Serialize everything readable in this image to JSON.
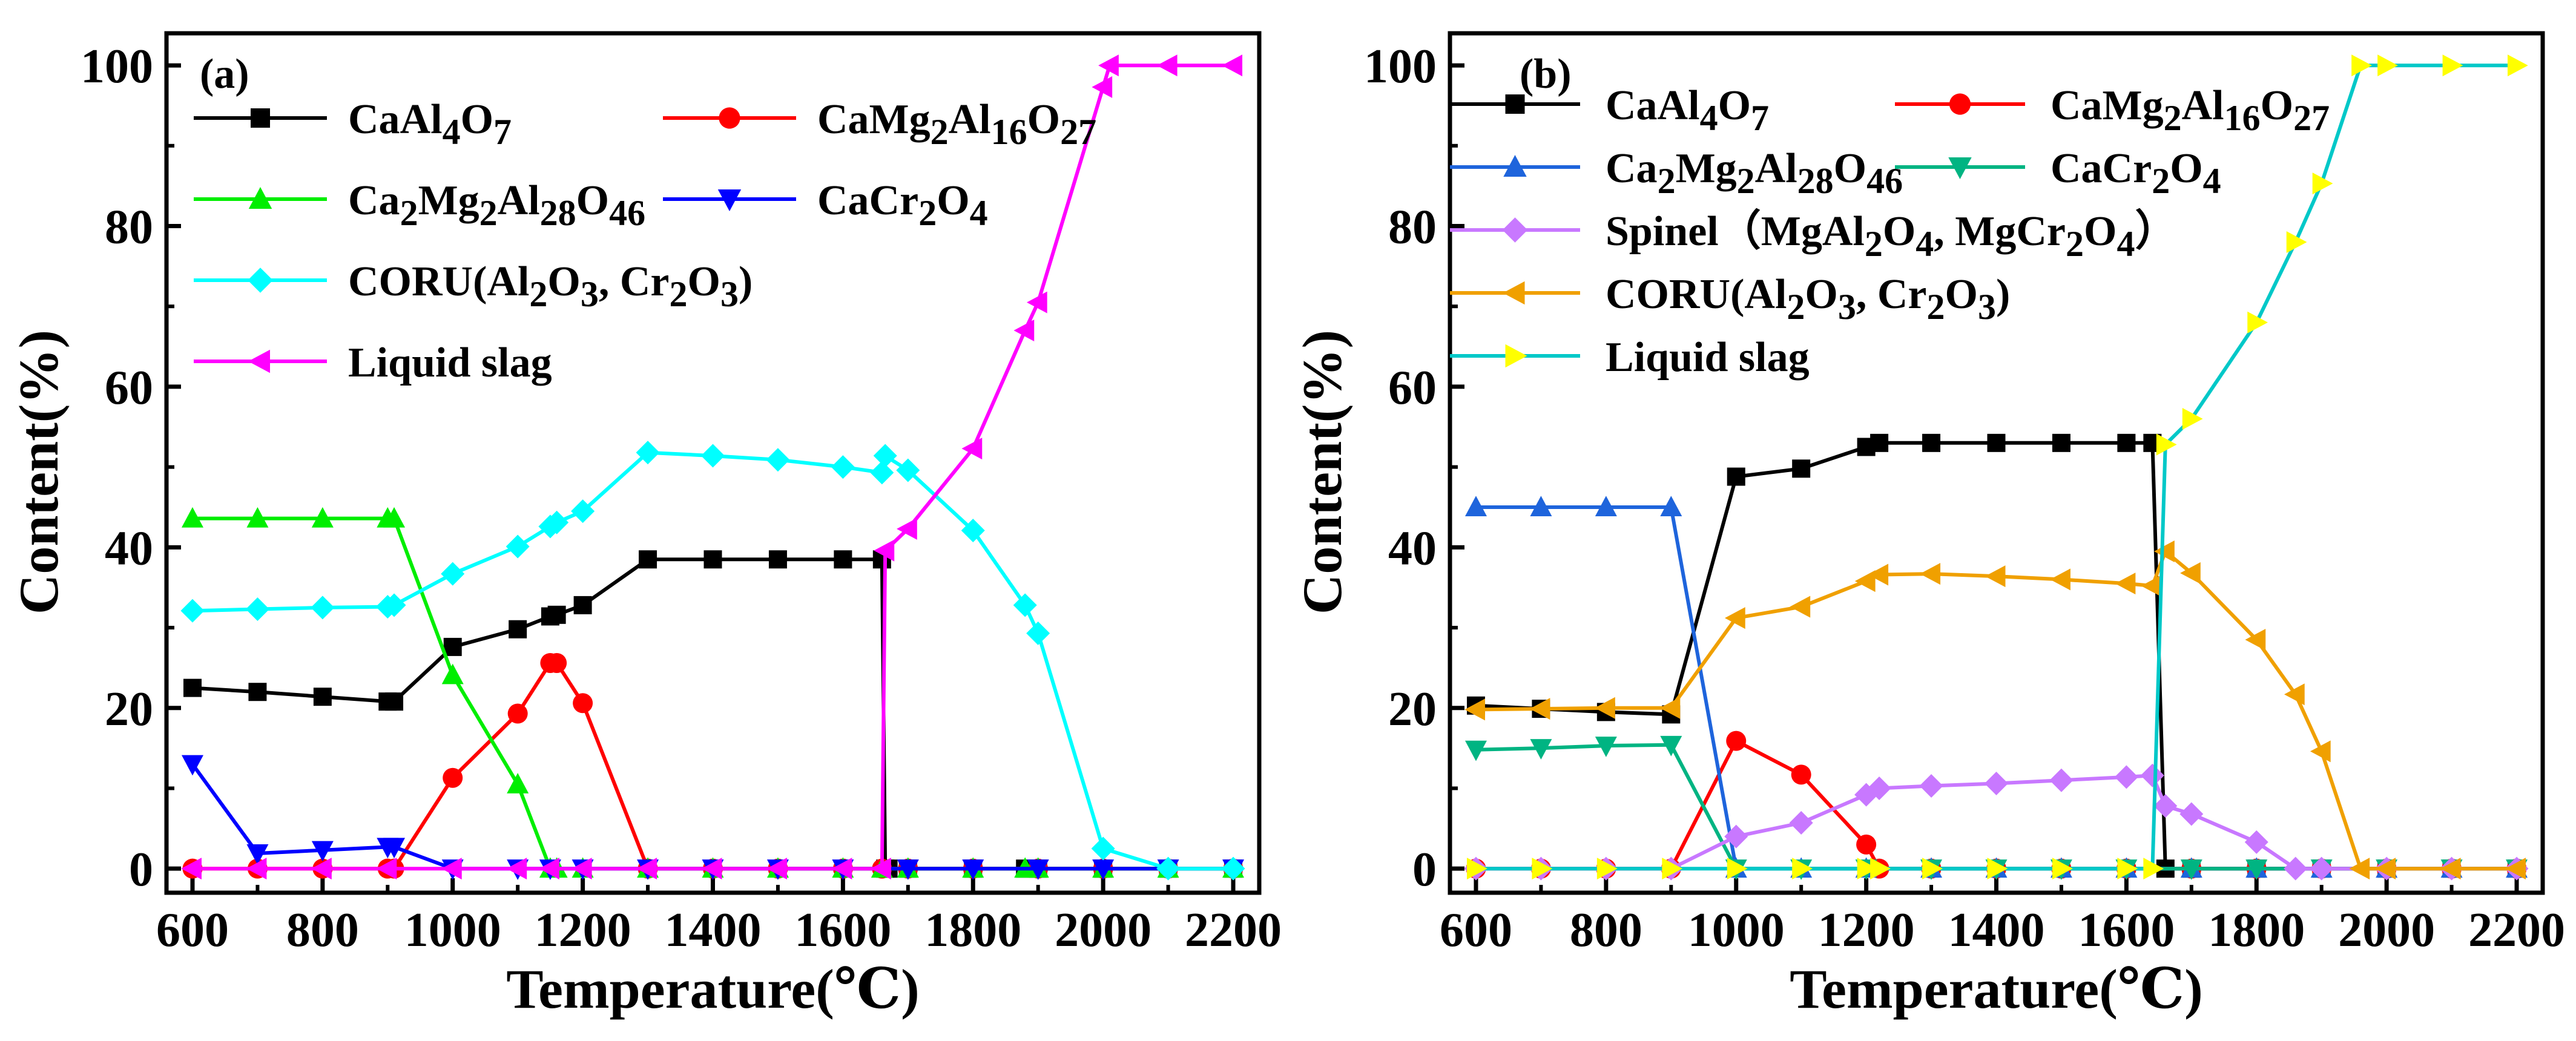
{
  "chart_data": [
    {
      "type": "line",
      "panel_label": "(a)",
      "xlabel": "Temperature(℃)",
      "ylabel": "Content(%)",
      "xlim": [
        560,
        2240
      ],
      "ylim": [
        -3,
        104
      ],
      "xticks": [
        600,
        800,
        1000,
        1200,
        1400,
        1600,
        1800,
        2000,
        2200
      ],
      "yticks": [
        0,
        20,
        40,
        60,
        80,
        100
      ],
      "legend": "top-left",
      "series": [
        {
          "name": "CaAl4O7",
          "label": {
            "main": "CaAl",
            "parts": [
              [
                "4",
                "sub"
              ],
              [
                "O",
                ""
              ],
              [
                "7",
                "sub"
              ]
            ]
          },
          "color": "#000000",
          "marker": "square",
          "x": [
            600,
            700,
            800,
            900,
            910,
            1000,
            1100,
            1150,
            1160,
            1200,
            1300,
            1400,
            1500,
            1600,
            1660,
            1665,
            1670,
            1700,
            1800,
            1880,
            1900,
            2000,
            2100,
            2200
          ],
          "y": [
            22.5,
            22,
            21.4,
            20.8,
            20.8,
            27.6,
            29.8,
            31.4,
            31.6,
            32.8,
            38.5,
            38.5,
            38.5,
            38.5,
            38.5,
            0,
            0,
            0,
            0,
            0,
            0,
            0,
            0,
            0
          ]
        },
        {
          "name": "CaMg2Al16O27",
          "label": {
            "main": "CaMg",
            "parts": [
              [
                "2",
                "sub"
              ],
              [
                "Al",
                ""
              ],
              [
                "16",
                "sub"
              ],
              [
                "O",
                ""
              ],
              [
                "27",
                "sub"
              ]
            ]
          },
          "color": "#ff0000",
          "marker": "circle",
          "x": [
            600,
            700,
            800,
            900,
            910,
            1000,
            1100,
            1150,
            1160,
            1200,
            1300,
            1400,
            1500,
            1600,
            1660,
            1700,
            1800,
            1900,
            2000,
            2100,
            2200
          ],
          "y": [
            0,
            0,
            0,
            0,
            0,
            11.3,
            19.3,
            25.6,
            25.6,
            20.6,
            0,
            0,
            0,
            0,
            0,
            0,
            0,
            0,
            0,
            0,
            0
          ]
        },
        {
          "name": "Ca2Mg2Al28O46",
          "label": {
            "main": "Ca",
            "parts": [
              [
                "2",
                "sub"
              ],
              [
                "Mg",
                ""
              ],
              [
                "2",
                "sub"
              ],
              [
                "Al",
                ""
              ],
              [
                "28",
                "sub"
              ],
              [
                "O",
                ""
              ],
              [
                "46",
                "sub"
              ]
            ]
          },
          "color": "#00ee00",
          "marker": "triangle-up",
          "x": [
            600,
            700,
            800,
            900,
            910,
            1000,
            1100,
            1150,
            1160,
            1200,
            1300,
            1400,
            1500,
            1600,
            1660,
            1700,
            1800,
            1880,
            1900,
            2000,
            2100,
            2200
          ],
          "y": [
            43.6,
            43.6,
            43.6,
            43.6,
            43.6,
            24.1,
            10.5,
            0,
            0,
            0,
            0,
            0,
            0,
            0,
            0,
            0,
            0,
            0,
            0,
            0,
            0,
            0
          ]
        },
        {
          "name": "CaCr2O4",
          "label": {
            "main": "CaCr",
            "parts": [
              [
                "2",
                "sub"
              ],
              [
                "O",
                ""
              ],
              [
                "4",
                "sub"
              ]
            ]
          },
          "color": "#0000ff",
          "marker": "triangle-down",
          "x": [
            600,
            700,
            800,
            900,
            910,
            1000,
            1100,
            1150,
            1200,
            1300,
            1400,
            1500,
            1600,
            1700,
            1800,
            1900,
            2000,
            2100,
            2200
          ],
          "y": [
            13,
            1.9,
            2.3,
            2.7,
            2.7,
            0,
            0,
            0,
            0,
            0,
            0,
            0,
            0,
            0,
            0,
            0,
            0,
            0,
            0
          ]
        },
        {
          "name": "CORU(Al2O3, Cr2O3)",
          "label": {
            "main": "CORU(Al",
            "parts": [
              [
                "2",
                "sub"
              ],
              [
                "O",
                ""
              ],
              [
                "3",
                "sub"
              ],
              [
                ", Cr",
                ""
              ],
              [
                "2",
                "sub"
              ],
              [
                "O",
                ""
              ],
              [
                "3",
                "sub"
              ],
              [
                ")",
                ""
              ]
            ]
          },
          "color": "#00ffff",
          "marker": "diamond",
          "x": [
            600,
            700,
            800,
            900,
            910,
            1000,
            1100,
            1150,
            1160,
            1200,
            1300,
            1400,
            1500,
            1600,
            1660,
            1665,
            1700,
            1800,
            1880,
            1900,
            2000,
            2100,
            2200
          ],
          "y": [
            32.1,
            32.3,
            32.5,
            32.6,
            32.8,
            36.7,
            40.1,
            42.6,
            43.1,
            44.5,
            51.8,
            51.4,
            50.9,
            50,
            49.3,
            51.4,
            49.6,
            42.1,
            32.8,
            29.3,
            2.5,
            0,
            0
          ]
        },
        {
          "name": "Liquid slag",
          "label": {
            "main": "Liquid slag",
            "parts": []
          },
          "color": "#ff00ff",
          "marker": "triangle-left",
          "x": [
            600,
            700,
            800,
            900,
            1000,
            1100,
            1150,
            1200,
            1300,
            1400,
            1500,
            1600,
            1660,
            1665,
            1700,
            1800,
            1880,
            1900,
            2000,
            2010,
            2100,
            2200
          ],
          "y": [
            0,
            0,
            0,
            0,
            0,
            0,
            0,
            0,
            0,
            0,
            0,
            0,
            0,
            39.6,
            42.3,
            52.3,
            67,
            70.5,
            97.3,
            100,
            100,
            100
          ]
        }
      ]
    },
    {
      "type": "line",
      "panel_label": "(b)",
      "xlabel": "Temperature(℃)",
      "ylabel": "Content(%)",
      "xlim": [
        560,
        2240
      ],
      "ylim": [
        -3,
        104
      ],
      "xticks": [
        600,
        800,
        1000,
        1200,
        1400,
        1600,
        1800,
        2000,
        2200
      ],
      "yticks": [
        0,
        20,
        40,
        60,
        80,
        100
      ],
      "legend": "top-left",
      "series": [
        {
          "name": "CaAl4O7",
          "label": {
            "main": "CaAl",
            "parts": [
              [
                "4",
                "sub"
              ],
              [
                "O",
                ""
              ],
              [
                "7",
                "sub"
              ]
            ]
          },
          "color": "#000000",
          "marker": "square",
          "x": [
            600,
            700,
            800,
            900,
            1000,
            1100,
            1200,
            1220,
            1300,
            1400,
            1500,
            1600,
            1640,
            1660,
            1700,
            1800,
            1900,
            2000,
            2100,
            2200
          ],
          "y": [
            20.3,
            19.9,
            19.5,
            19.2,
            48.8,
            49.8,
            52.5,
            53,
            53,
            53,
            53,
            53,
            53,
            0,
            0,
            0,
            0,
            0,
            0,
            0
          ]
        },
        {
          "name": "CaMg2Al16O27",
          "label": {
            "main": "CaMg",
            "parts": [
              [
                "2",
                "sub"
              ],
              [
                "Al",
                ""
              ],
              [
                "16",
                "sub"
              ],
              [
                "O",
                ""
              ],
              [
                "27",
                "sub"
              ]
            ]
          },
          "color": "#ff0000",
          "marker": "circle",
          "x": [
            600,
            700,
            800,
            900,
            1000,
            1100,
            1200,
            1220,
            1300,
            1400,
            1500,
            1600,
            1700,
            1800,
            1900,
            2000,
            2100,
            2200
          ],
          "y": [
            0,
            0,
            0,
            0,
            15.9,
            11.7,
            3,
            0,
            0,
            0,
            0,
            0,
            0,
            0,
            0,
            0,
            0,
            0
          ]
        },
        {
          "name": "Ca2Mg2Al28O46",
          "label": {
            "main": "Ca",
            "parts": [
              [
                "2",
                "sub"
              ],
              [
                "Mg",
                ""
              ],
              [
                "2",
                "sub"
              ],
              [
                "Al",
                ""
              ],
              [
                "28",
                "sub"
              ],
              [
                "O",
                ""
              ],
              [
                "46",
                "sub"
              ]
            ]
          },
          "color": "#1e64dc",
          "marker": "triangle-up",
          "x": [
            600,
            700,
            800,
            900,
            1000,
            1100,
            1200,
            1300,
            1400,
            1500,
            1600,
            1700,
            1800,
            1900,
            2000,
            2100,
            2200
          ],
          "y": [
            45,
            45,
            45,
            45,
            0,
            0,
            0,
            0,
            0,
            0,
            0,
            0,
            0,
            0,
            0,
            0,
            0
          ]
        },
        {
          "name": "CaCr2O4",
          "label": {
            "main": "CaCr",
            "parts": [
              [
                "2",
                "sub"
              ],
              [
                "O",
                ""
              ],
              [
                "4",
                "sub"
              ]
            ]
          },
          "color": "#00b482",
          "marker": "triangle-down",
          "x": [
            600,
            700,
            800,
            900,
            1000,
            1100,
            1200,
            1300,
            1400,
            1500,
            1600,
            1700,
            1800,
            1900,
            2000,
            2100,
            2200
          ],
          "y": [
            14.8,
            15,
            15.3,
            15.4,
            0,
            0,
            0,
            0,
            0,
            0,
            0,
            0,
            0,
            0,
            0,
            0,
            0
          ]
        },
        {
          "name": "Spinel（MgAl2O4, MgCr2O4）",
          "label": {
            "main": "Spinel（MgAl",
            "parts": [
              [
                "2",
                "sub"
              ],
              [
                "O",
                ""
              ],
              [
                "4",
                "sub"
              ],
              [
                ", MgCr",
                ""
              ],
              [
                "2",
                "sub"
              ],
              [
                "O",
                ""
              ],
              [
                "4",
                "sub"
              ],
              [
                "）",
                ""
              ]
            ]
          },
          "color": "#c878ff",
          "marker": "diamond",
          "x": [
            600,
            700,
            800,
            900,
            1000,
            1100,
            1200,
            1220,
            1300,
            1400,
            1500,
            1600,
            1640,
            1660,
            1700,
            1800,
            1860,
            1900,
            2000,
            2100,
            2200
          ],
          "y": [
            0,
            0,
            0,
            0,
            4,
            5.7,
            9.2,
            10,
            10.3,
            10.6,
            11,
            11.4,
            11.6,
            7.8,
            6.8,
            3.3,
            0,
            0,
            0,
            0,
            0
          ]
        },
        {
          "name": "CORU(Al2O3, Cr2O3)",
          "label": {
            "main": "CORU(Al",
            "parts": [
              [
                "2",
                "sub"
              ],
              [
                "O",
                ""
              ],
              [
                "3",
                "sub"
              ],
              [
                ", Cr",
                ""
              ],
              [
                "2",
                "sub"
              ],
              [
                "O",
                ""
              ],
              [
                "3",
                "sub"
              ],
              [
                ")",
                ""
              ]
            ]
          },
          "color": "#f0a000",
          "marker": "triangle-left",
          "x": [
            600,
            700,
            800,
            900,
            1000,
            1100,
            1200,
            1220,
            1300,
            1400,
            1500,
            1600,
            1640,
            1660,
            1700,
            1800,
            1860,
            1900,
            1960,
            2000,
            2100,
            2200
          ],
          "y": [
            19.8,
            19.9,
            20,
            20,
            31.2,
            32.6,
            35.8,
            36.6,
            36.7,
            36.4,
            36,
            35.5,
            35.2,
            39.5,
            36.8,
            28.5,
            21.7,
            14.6,
            0,
            0,
            0,
            0
          ]
        },
        {
          "name": "Liquid slag",
          "label": {
            "main": "Liquid slag",
            "parts": []
          },
          "color": "#00c8c8",
          "marker": "triangle-right",
          "marker_color": "#ffff00",
          "x": [
            600,
            700,
            800,
            900,
            1000,
            1100,
            1200,
            1220,
            1300,
            1400,
            1500,
            1600,
            1640,
            1660,
            1700,
            1800,
            1860,
            1900,
            1960,
            2000,
            2100,
            2200
          ],
          "y": [
            0,
            0,
            0,
            0,
            0,
            0,
            0,
            0,
            0,
            0,
            0,
            0,
            0,
            52.8,
            56,
            68,
            78,
            85.3,
            100,
            100,
            100,
            100
          ]
        }
      ]
    }
  ]
}
